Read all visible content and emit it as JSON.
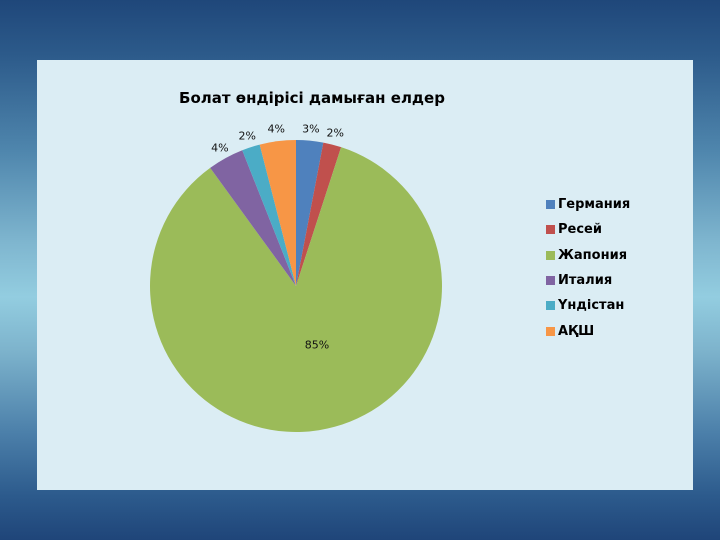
{
  "chart_data": {
    "type": "pie",
    "title": "Болат өндірісі дамыған елдер",
    "categories": [
      "Германия",
      "Ресей",
      "Жапония",
      "Италия",
      "Үндістан",
      "АҚШ"
    ],
    "values": [
      3,
      2,
      85,
      4,
      2,
      4
    ],
    "labels": [
      "3%",
      "2%",
      "85%",
      "4%",
      "2%",
      "4%"
    ],
    "colors": [
      "#4f81bd",
      "#c0504d",
      "#9bbb59",
      "#8064a2",
      "#4bacc6",
      "#f79646"
    ],
    "start_angle": "12 o'clock, clockwise",
    "legend_position": "right"
  },
  "legend": {
    "items": [
      {
        "label": "Германия",
        "color": "#4f81bd"
      },
      {
        "label": "Ресей",
        "color": "#c0504d"
      },
      {
        "label": "Жапония",
        "color": "#9bbb59"
      },
      {
        "label": "Италия",
        "color": "#8064a2"
      },
      {
        "label": "Үндістан",
        "color": "#4bacc6"
      },
      {
        "label": "АҚШ",
        "color": "#f79646"
      }
    ]
  }
}
